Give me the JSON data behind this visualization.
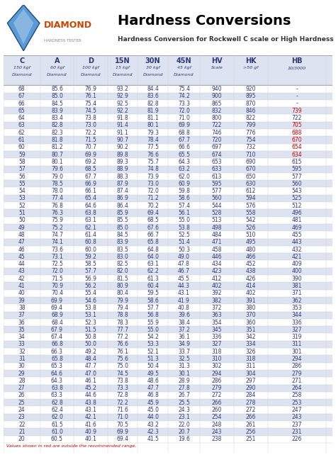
{
  "title": "Hardness Conversions",
  "subtitle": "Hardness Conversion for Rockwell C scale or High Hardness Range",
  "headers": [
    "C",
    "A",
    "D",
    "15N",
    "30N",
    "45N",
    "HV",
    "HK",
    "HB"
  ],
  "subheaders": [
    "150 kgf\nDiamond",
    "60 kgf\nDiamond",
    "100 kgf\nDiamond",
    "15 kgf\nDiamond",
    "30 kgf\nDiamond",
    "45 kgf\nDiamond",
    "Scale",
    ">50 gf",
    "10/3000"
  ],
  "footer": "Values shown in red are outside the recommended range.",
  "rows": [
    [
      68,
      85.6,
      76.9,
      93.2,
      84.4,
      75.4,
      940,
      920,
      "-"
    ],
    [
      67,
      85.0,
      76.1,
      92.9,
      83.6,
      74.2,
      900,
      895,
      "-"
    ],
    [
      66,
      84.5,
      75.4,
      92.5,
      82.8,
      73.3,
      865,
      870,
      "-"
    ],
    [
      65,
      83.9,
      74.5,
      92.2,
      81.9,
      72.0,
      832,
      846,
      "739"
    ],
    [
      64,
      83.4,
      73.8,
      91.8,
      81.1,
      71.0,
      800,
      822,
      "722"
    ],
    [
      63,
      82.8,
      73.0,
      91.4,
      80.1,
      69.9,
      722,
      799,
      "705"
    ],
    [
      62,
      82.3,
      72.2,
      91.1,
      79.3,
      68.8,
      746,
      776,
      "688"
    ],
    [
      61,
      81.8,
      71.5,
      90.7,
      78.4,
      67.7,
      720,
      754,
      "670"
    ],
    [
      60,
      81.2,
      70.7,
      90.2,
      77.5,
      66.6,
      697,
      732,
      "654"
    ],
    [
      59,
      80.7,
      69.9,
      89.8,
      76.6,
      65.5,
      674,
      710,
      "634"
    ],
    [
      58,
      80.1,
      69.2,
      89.3,
      75.7,
      64.3,
      653,
      690,
      "615"
    ],
    [
      57,
      79.6,
      68.5,
      88.9,
      74.8,
      63.2,
      633,
      670,
      "595"
    ],
    [
      56,
      79.0,
      67.7,
      88.3,
      73.9,
      62.0,
      613,
      650,
      "577"
    ],
    [
      55,
      78.5,
      66.9,
      87.9,
      73.0,
      60.9,
      595,
      630,
      "560"
    ],
    [
      54,
      78.0,
      66.1,
      87.4,
      72.0,
      59.8,
      577,
      612,
      "543"
    ],
    [
      53,
      77.4,
      65.4,
      86.9,
      71.2,
      58.6,
      560,
      594,
      "525"
    ],
    [
      52,
      76.8,
      64.6,
      86.4,
      70.2,
      57.4,
      544,
      576,
      "512"
    ],
    [
      51,
      76.3,
      63.8,
      85.9,
      69.4,
      56.1,
      528,
      558,
      "496"
    ],
    [
      50,
      75.9,
      63.1,
      85.5,
      68.5,
      55.0,
      513,
      542,
      "481"
    ],
    [
      49,
      75.2,
      62.1,
      85.0,
      67.6,
      53.8,
      498,
      526,
      "469"
    ],
    [
      48,
      74.7,
      61.4,
      84.5,
      66.7,
      52.5,
      484,
      510,
      "455"
    ],
    [
      47,
      74.1,
      60.8,
      83.9,
      65.8,
      51.4,
      471,
      495,
      "443"
    ],
    [
      46,
      73.6,
      60.0,
      83.5,
      64.8,
      50.3,
      458,
      480,
      "432"
    ],
    [
      45,
      73.1,
      59.2,
      83.0,
      64.0,
      49.0,
      446,
      466,
      "421"
    ],
    [
      44,
      72.5,
      58.5,
      82.5,
      63.1,
      47.8,
      434,
      452,
      "409"
    ],
    [
      43,
      72.0,
      57.7,
      82.0,
      62.2,
      46.7,
      423,
      438,
      "400"
    ],
    [
      42,
      71.5,
      56.9,
      81.5,
      61.3,
      45.5,
      412,
      426,
      "390"
    ],
    [
      41,
      70.9,
      56.2,
      80.9,
      60.4,
      44.3,
      402,
      414,
      "381"
    ],
    [
      40,
      70.4,
      55.4,
      80.4,
      59.5,
      43.1,
      392,
      402,
      "371"
    ],
    [
      39,
      69.9,
      54.6,
      79.9,
      58.6,
      41.9,
      382,
      391,
      "362"
    ],
    [
      38,
      69.4,
      53.8,
      79.4,
      57.7,
      40.8,
      372,
      380,
      "353"
    ],
    [
      37,
      68.9,
      53.1,
      78.8,
      56.8,
      39.6,
      363,
      370,
      "344"
    ],
    [
      36,
      68.4,
      52.3,
      78.3,
      55.9,
      38.4,
      354,
      360,
      "336"
    ],
    [
      35,
      67.9,
      51.5,
      77.7,
      55.0,
      37.2,
      345,
      351,
      "327"
    ],
    [
      34,
      67.4,
      50.8,
      77.2,
      54.2,
      36.1,
      336,
      342,
      "319"
    ],
    [
      33,
      66.8,
      50.0,
      76.6,
      53.3,
      34.9,
      327,
      334,
      "311"
    ],
    [
      32,
      66.3,
      49.2,
      76.1,
      52.1,
      33.7,
      318,
      326,
      "301"
    ],
    [
      31,
      65.8,
      48.4,
      75.6,
      51.3,
      32.5,
      310,
      318,
      "294"
    ],
    [
      30,
      65.3,
      47.7,
      75.0,
      50.4,
      31.3,
      302,
      311,
      "286"
    ],
    [
      29,
      64.6,
      47.0,
      74.5,
      49.5,
      30.1,
      294,
      304,
      "279"
    ],
    [
      28,
      64.3,
      46.1,
      73.8,
      48.6,
      28.9,
      286,
      297,
      "271"
    ],
    [
      27,
      63.8,
      45.2,
      73.3,
      47.7,
      27.8,
      279,
      290,
      "264"
    ],
    [
      26,
      63.3,
      44.6,
      72.8,
      46.8,
      26.7,
      272,
      284,
      "258"
    ],
    [
      25,
      62.8,
      43.8,
      72.2,
      45.9,
      25.5,
      266,
      278,
      "253"
    ],
    [
      24,
      62.4,
      43.1,
      71.6,
      45.0,
      24.3,
      260,
      272,
      "247"
    ],
    [
      23,
      62.0,
      42.1,
      71.0,
      44.0,
      23.1,
      254,
      266,
      "243"
    ],
    [
      22,
      61.5,
      41.6,
      70.5,
      43.2,
      22.0,
      248,
      261,
      "237"
    ],
    [
      21,
      61.0,
      40.9,
      69.9,
      42.3,
      20.7,
      243,
      256,
      "231"
    ],
    [
      20,
      60.5,
      40.1,
      69.4,
      41.5,
      19.6,
      238,
      251,
      "226"
    ]
  ],
  "red_rows": [
    65,
    63,
    62,
    61,
    60,
    59
  ],
  "alt_row_color": "#dde3f0",
  "normal_row_color": "#ffffff",
  "header_color": "#dde3f0",
  "red_color": "#cc0000",
  "text_color": "#2d3a7a",
  "header_text_color": "#2d3a7a"
}
